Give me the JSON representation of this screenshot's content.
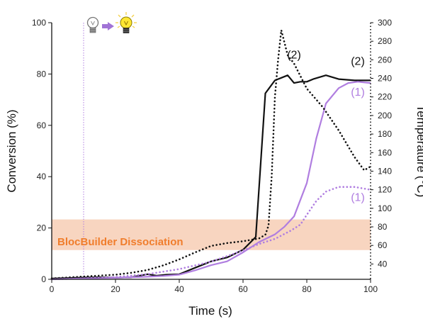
{
  "chart_data": {
    "type": "line",
    "xlabel": "Time (s)",
    "ylabel": "Conversion (%)",
    "y2label": "Temperature (°C)",
    "xlim": [
      0,
      100
    ],
    "ylim": [
      0,
      100
    ],
    "y2lim": [
      23.5,
      300
    ],
    "xticks": [
      0,
      20,
      40,
      60,
      80,
      100
    ],
    "yticks": [
      0,
      20,
      40,
      60,
      80,
      100
    ],
    "y2ticks": [
      40,
      60,
      80,
      100,
      120,
      140,
      160,
      180,
      200,
      220,
      240,
      260,
      280,
      300
    ],
    "grid": false,
    "band": {
      "label": "BlocBuilder Dissociation",
      "y2_range": [
        55,
        88
      ],
      "color": "#f8d5c0",
      "text_color": "#f07d2c"
    },
    "light_on_x": 10,
    "colors": {
      "black": "#111111",
      "purple": "#b07ee0"
    },
    "annotations": [
      {
        "text": "(2)",
        "x": 76,
        "y": 86,
        "color": "#111111"
      },
      {
        "text": "(2)",
        "x": 96,
        "y": 83.5,
        "color": "#111111"
      },
      {
        "text": "(1)",
        "x": 96,
        "y": 71.5,
        "color": "#b07ee0"
      },
      {
        "text": "(1)",
        "x": 96,
        "y": 30.5,
        "color": "#b07ee0"
      }
    ],
    "series": [
      {
        "axis": "y",
        "style": "solid",
        "color": "#111111",
        "x": [
          0,
          5,
          10,
          15,
          20,
          25,
          30,
          33,
          36,
          40,
          45,
          50,
          55,
          60,
          64,
          67,
          70,
          72,
          74,
          76,
          78,
          80,
          82,
          86,
          90,
          95,
          100
        ],
        "values": [
          0.3,
          0.5,
          0.7,
          0.8,
          0.6,
          0.8,
          2.0,
          1.4,
          1.8,
          2.0,
          4.5,
          7.0,
          8.5,
          11.5,
          16.5,
          72.5,
          77.5,
          78.5,
          79.5,
          76.5,
          77.0,
          77.0,
          78.0,
          79.5,
          78.0,
          77.5,
          77.5
        ]
      },
      {
        "axis": "y",
        "style": "solid",
        "color": "#b07ee0",
        "x": [
          0,
          10,
          20,
          30,
          35,
          40,
          45,
          50,
          55,
          60,
          65,
          70,
          73,
          76,
          80,
          83,
          86,
          90,
          93,
          96,
          100
        ],
        "values": [
          0.0,
          0.3,
          0.6,
          1.0,
          1.3,
          1.8,
          3.5,
          5.5,
          7.0,
          10.5,
          14.5,
          17.5,
          20.5,
          24.5,
          37.5,
          55.0,
          68.5,
          74.5,
          76.5,
          77.0,
          76.5
        ]
      },
      {
        "axis": "y2",
        "style": "dotted",
        "color": "#111111",
        "x": [
          0,
          10,
          20,
          25,
          30,
          35,
          40,
          45,
          50,
          55,
          60,
          65,
          67,
          68,
          69,
          70,
          71,
          72,
          74,
          76,
          80,
          85,
          90,
          95,
          98,
          100
        ],
        "values": [
          24.5,
          26.5,
          28.5,
          30.5,
          33.5,
          38.5,
          45.0,
          52.5,
          59.5,
          62.5,
          64.5,
          67.5,
          71.5,
          81.5,
          135.0,
          220.0,
          260.0,
          292.0,
          265.0,
          256.0,
          229.0,
          209.0,
          184.0,
          155.0,
          141.0,
          145.0
        ]
      },
      {
        "axis": "y2",
        "style": "dotted",
        "color": "#b07ee0",
        "x": [
          0,
          10,
          20,
          30,
          40,
          50,
          60,
          65,
          70,
          75,
          78,
          80,
          83,
          86,
          90,
          95,
          100
        ],
        "values": [
          23.5,
          24.5,
          26.0,
          29.0,
          34.5,
          42.5,
          54.5,
          61.5,
          67.0,
          76.0,
          82.5,
          93.0,
          108.0,
          118.0,
          123.0,
          123.0,
          120.0
        ]
      }
    ]
  }
}
